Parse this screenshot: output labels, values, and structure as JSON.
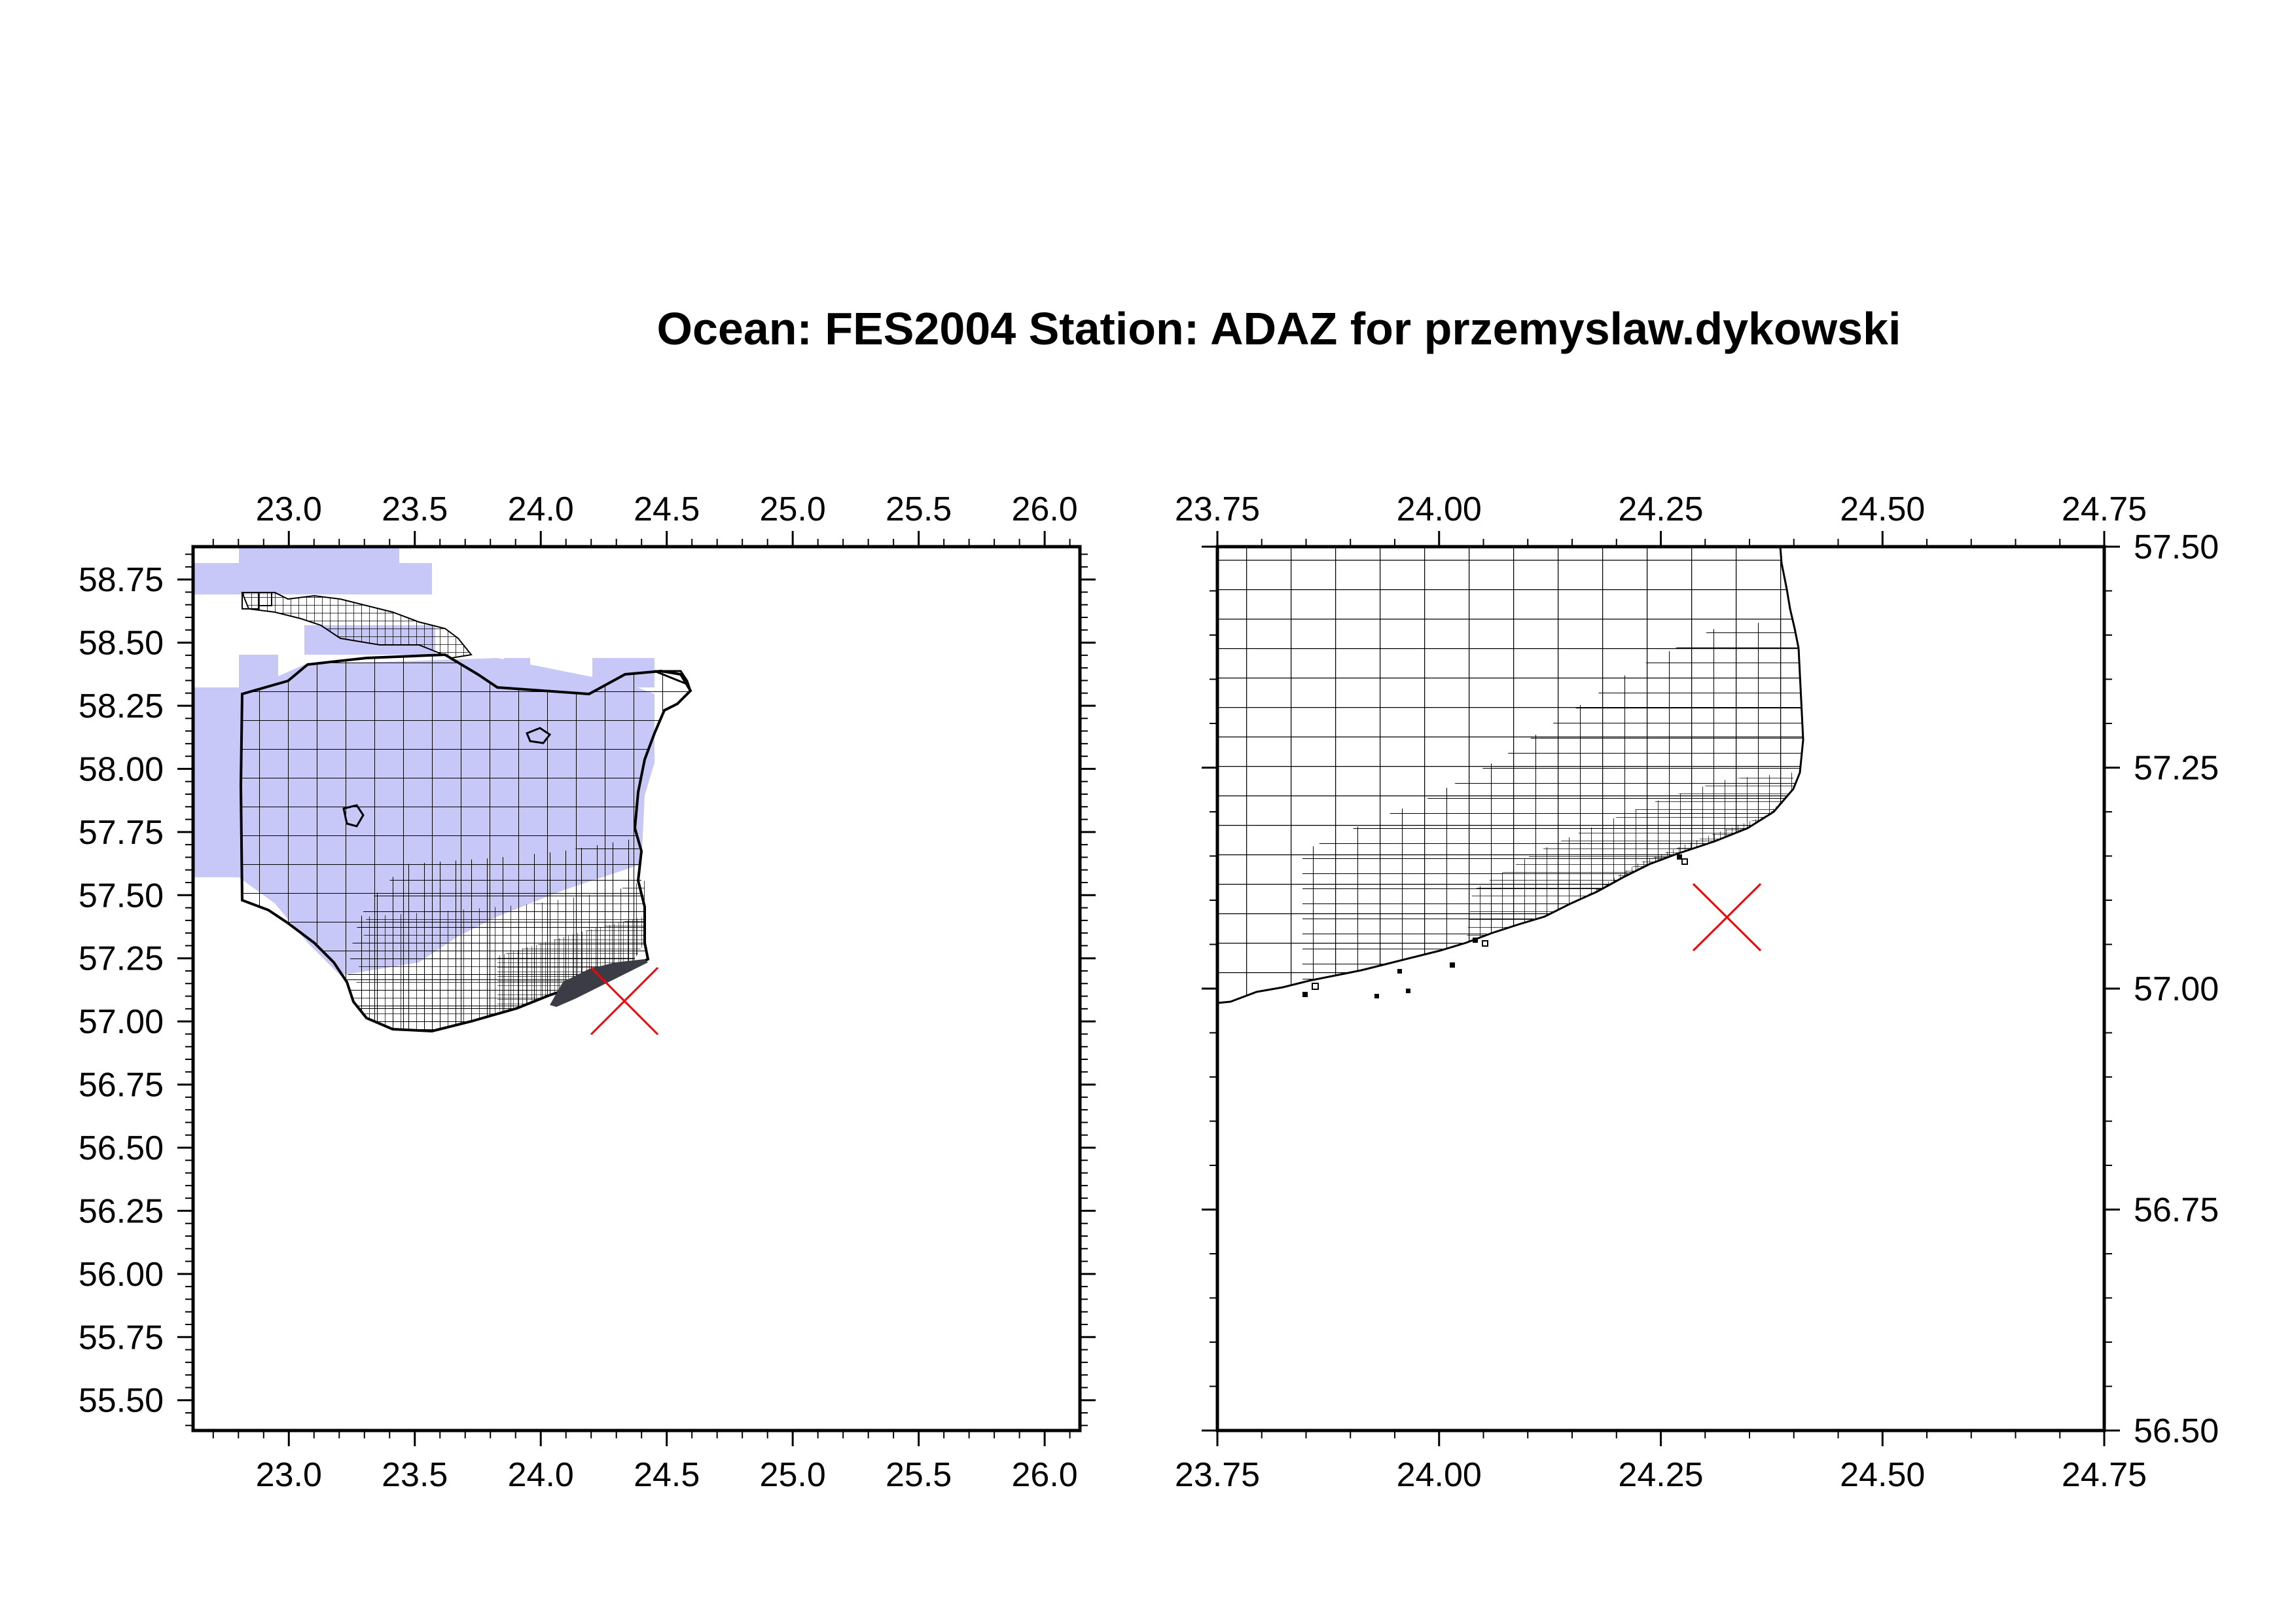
{
  "title": "Ocean: FES2004  Station: ADAZ  for przemyslaw.dykowski",
  "colors": {
    "ocean_fill": "#c8c8f8",
    "grid_line": "#000000",
    "dense_fill": "#3c3c46",
    "marker": "#ff0000",
    "frame": "#000000"
  },
  "marker_icon": "x-cross-marker",
  "chart_data": [
    {
      "type": "map",
      "panel": "left",
      "x_ticks": [
        "23.0",
        "23.5",
        "24.0",
        "24.5",
        "25.0",
        "25.5",
        "26.0"
      ],
      "y_ticks": [
        "58.75",
        "58.50",
        "58.25",
        "58.00",
        "57.75",
        "57.50",
        "57.25",
        "57.00",
        "56.75",
        "56.50",
        "56.25",
        "56.00",
        "55.75",
        "55.50"
      ],
      "xlim": [
        22.62,
        26.14
      ],
      "ylim": [
        55.38,
        58.88
      ],
      "station": {
        "lon": 24.33,
        "lat": 57.09
      }
    },
    {
      "type": "map",
      "panel": "right",
      "x_ticks": [
        "23.75",
        "24.00",
        "24.25",
        "24.50",
        "24.75"
      ],
      "y_ticks": [
        "57.50",
        "57.25",
        "57.00",
        "56.75",
        "56.50"
      ],
      "xlim": [
        23.75,
        24.75
      ],
      "ylim": [
        56.5,
        57.5
      ],
      "station": {
        "lon": 24.32,
        "lat": 57.08
      }
    }
  ]
}
